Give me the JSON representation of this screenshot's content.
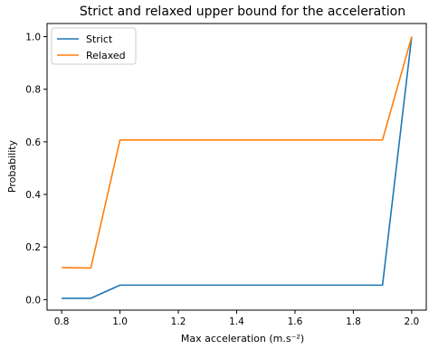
{
  "chart_data": {
    "type": "line",
    "title": "Strict and relaxed upper bound for the acceleration",
    "xlabel": "Max acceleration (m.s⁻²)",
    "ylabel": "Probability",
    "xlim": [
      0.75,
      2.05
    ],
    "ylim": [
      -0.04,
      1.05
    ],
    "x_ticks": [
      "0.8",
      "1.0",
      "1.2",
      "1.4",
      "1.6",
      "1.8",
      "2.0"
    ],
    "y_ticks": [
      "0.0",
      "0.2",
      "0.4",
      "0.6",
      "0.8",
      "1.0"
    ],
    "grid": false,
    "legend_position": "top-left",
    "x": [
      0.8,
      0.9,
      1.0,
      1.1,
      1.2,
      1.3,
      1.4,
      1.5,
      1.6,
      1.7,
      1.8,
      1.9,
      2.0
    ],
    "series": [
      {
        "name": "Strict",
        "color": "#1f77b4",
        "values": [
          0.005,
          0.005,
          0.055,
          0.055,
          0.055,
          0.055,
          0.055,
          0.055,
          0.055,
          0.055,
          0.055,
          0.055,
          1.0
        ]
      },
      {
        "name": "Relaxed",
        "color": "#ff7f0e",
        "values": [
          0.122,
          0.12,
          0.607,
          0.607,
          0.607,
          0.607,
          0.607,
          0.607,
          0.607,
          0.607,
          0.607,
          0.607,
          1.0
        ]
      }
    ]
  }
}
